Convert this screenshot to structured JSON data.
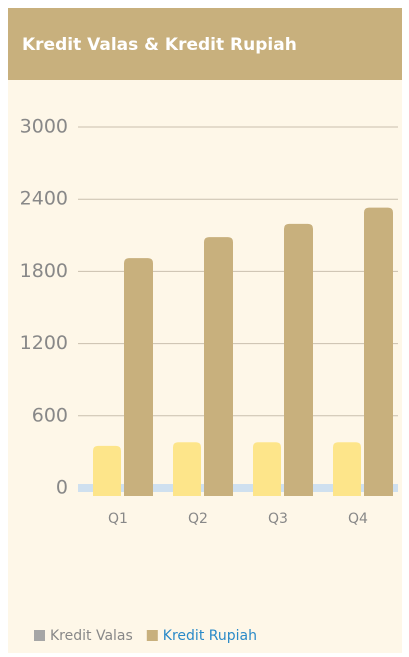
{
  "chart_data": {
    "type": "bar",
    "title": "Kredit Valas & Kredit Rupiah",
    "categories": [
      "Q1",
      "Q2",
      "Q3",
      "Q4"
    ],
    "series": [
      {
        "name": "Kredit Valas",
        "color": "#fde58a",
        "legend_color": "#a6a6a6",
        "values": [
          350,
          380,
          380,
          380
        ]
      },
      {
        "name": "Kredit Rupiah",
        "color": "#c8b07d",
        "values": [
          1910,
          2085,
          2195,
          2330
        ]
      }
    ],
    "ylim": [
      0,
      3000
    ],
    "yticks": [
      0,
      600,
      1200,
      1800,
      2400,
      3000
    ],
    "grid": true
  }
}
